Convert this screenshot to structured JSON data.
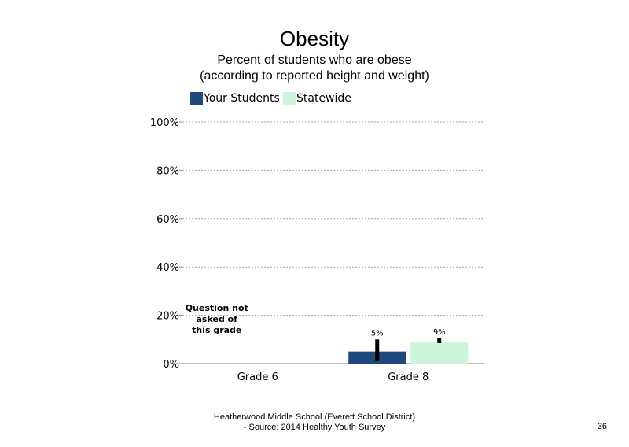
{
  "chart_data": {
    "type": "bar",
    "title": "Obesity",
    "subtitle": "Percent of students who are obese (according to reported height and weight)",
    "categories": [
      "Grade 6",
      "Grade 8"
    ],
    "series": [
      {
        "name": "Your Students",
        "color": "#1f497d",
        "values": [
          null,
          5
        ],
        "error": [
          null,
          [
            1,
            10
          ]
        ],
        "labels": [
          "",
          "5%"
        ]
      },
      {
        "name": "Statewide",
        "color": "#ccf5dc",
        "values": [
          null,
          9
        ],
        "error": [
          null,
          [
            8.5,
            10.5
          ]
        ],
        "labels": [
          "",
          "9%"
        ]
      }
    ],
    "yticks": [
      "0%",
      "20%",
      "40%",
      "60%",
      "80%",
      "100%"
    ],
    "ylim": [
      0,
      100
    ],
    "grid": true,
    "legend": "top",
    "annotations": [
      {
        "category": "Grade 6",
        "text": [
          "Question not",
          "asked of",
          "this grade"
        ]
      }
    ]
  },
  "footer": {
    "line1": "Heatherwood Middle School (Everett School District)",
    "line2": "- Source: 2014 Healthy  Youth Survey"
  },
  "page_number": "36"
}
